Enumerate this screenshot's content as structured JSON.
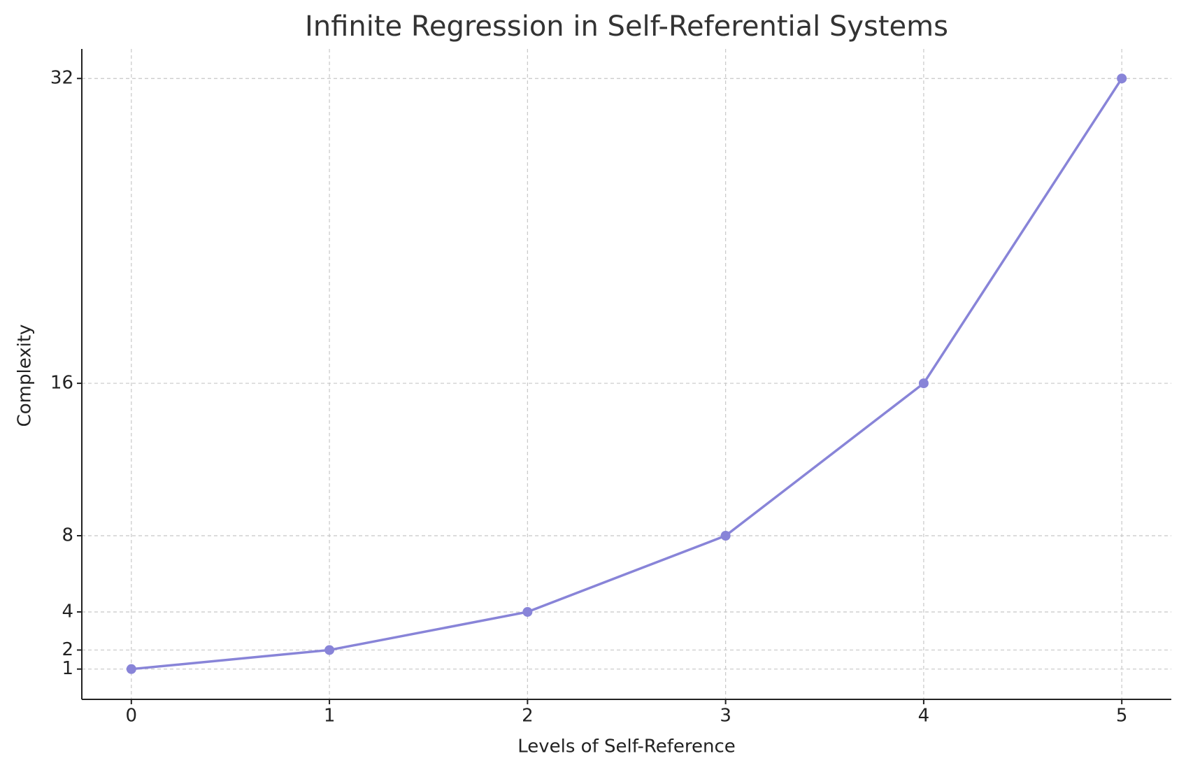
{
  "chart_data": {
    "type": "line",
    "title": "Infinite Regression in Self-Referential Systems",
    "x_label": "Levels of Self-Reference",
    "y_label": "Complexity",
    "x": [
      0,
      1,
      2,
      3,
      4,
      5
    ],
    "series": [
      {
        "color": "#8884d8",
        "values": [
          1,
          2,
          4,
          8,
          16,
          32
        ]
      }
    ],
    "xlim": [
      -0.25,
      5.25
    ],
    "ylim": [
      -0.59,
      33.55
    ],
    "xticks": [
      0,
      1,
      2,
      3,
      4,
      5
    ],
    "yticks": [
      1,
      2,
      4,
      8,
      16,
      32
    ],
    "grid": true
  }
}
